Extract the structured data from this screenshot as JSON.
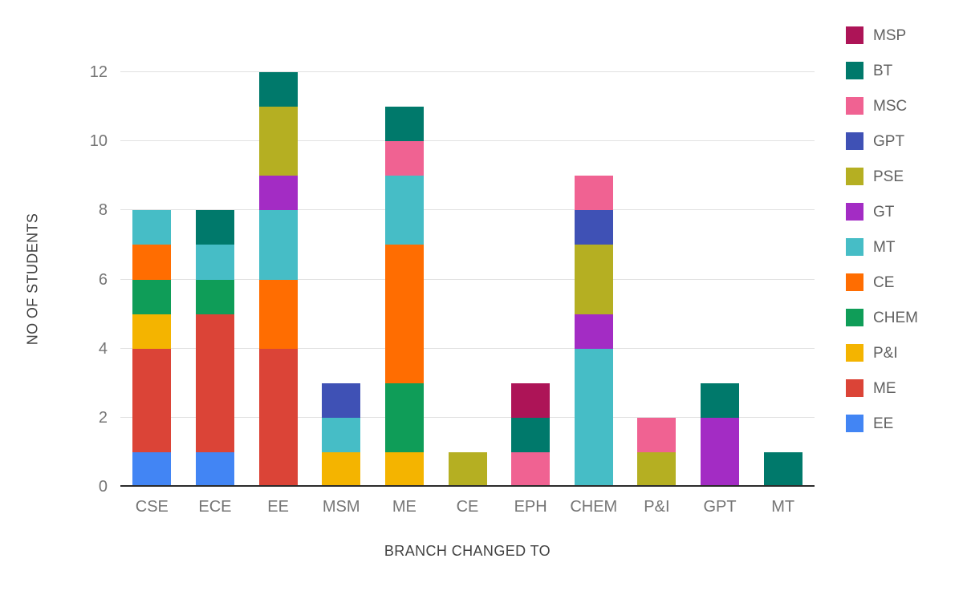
{
  "chart_data": {
    "type": "bar",
    "stacked": true,
    "xlabel": "BRANCH CHANGED TO",
    "ylabel": "NO OF STUDENTS",
    "categories": [
      "CSE",
      "ECE",
      "EE",
      "MSM",
      "ME",
      "CE",
      "EPH",
      "CHEM",
      "P&I",
      "GPT",
      "MT"
    ],
    "ylim": [
      0,
      12
    ],
    "yticks": [
      0,
      2,
      4,
      6,
      8,
      10,
      12
    ],
    "grid": true,
    "legend_position": "right",
    "legend_top_to_bottom": [
      "MSP",
      "BT",
      "MSC",
      "GPT",
      "PSE",
      "GT",
      "MT",
      "CE",
      "CHEM",
      "P&I",
      "ME",
      "EE"
    ],
    "series": [
      {
        "name": "EE",
        "color": "#4285F4",
        "values": [
          1,
          1,
          0,
          0,
          0,
          0,
          0,
          0,
          0,
          0,
          0
        ]
      },
      {
        "name": "ME",
        "color": "#DB4437",
        "values": [
          3,
          4,
          4,
          0,
          0,
          0,
          0,
          0,
          0,
          0,
          0
        ]
      },
      {
        "name": "P&I",
        "color": "#F4B400",
        "values": [
          1,
          0,
          0,
          1,
          1,
          0,
          0,
          0,
          0,
          0,
          0
        ]
      },
      {
        "name": "CHEM",
        "color": "#0F9D58",
        "values": [
          1,
          1,
          0,
          0,
          2,
          0,
          0,
          0,
          0,
          0,
          0
        ]
      },
      {
        "name": "CE",
        "color": "#FF6D01",
        "values": [
          1,
          0,
          2,
          0,
          4,
          0,
          0,
          0,
          0,
          0,
          0
        ]
      },
      {
        "name": "MT",
        "color": "#46BDC6",
        "values": [
          1,
          1,
          2,
          1,
          2,
          0,
          0,
          4,
          0,
          0,
          0
        ]
      },
      {
        "name": "GT",
        "color": "#A32CC4",
        "values": [
          0,
          0,
          1,
          0,
          0,
          0,
          0,
          1,
          0,
          2,
          0
        ]
      },
      {
        "name": "PSE",
        "color": "#B5AF22",
        "values": [
          0,
          0,
          2,
          0,
          0,
          1,
          0,
          2,
          1,
          0,
          0
        ]
      },
      {
        "name": "GPT",
        "color": "#3F51B5",
        "values": [
          0,
          0,
          0,
          1,
          0,
          0,
          0,
          1,
          0,
          0,
          0
        ]
      },
      {
        "name": "MSC",
        "color": "#F06292",
        "values": [
          0,
          0,
          0,
          0,
          1,
          0,
          1,
          1,
          1,
          0,
          0
        ]
      },
      {
        "name": "BT",
        "color": "#00796B",
        "values": [
          0,
          1,
          1,
          0,
          1,
          0,
          1,
          0,
          0,
          1,
          1
        ]
      },
      {
        "name": "MSP",
        "color": "#AD1457",
        "values": [
          0,
          0,
          0,
          0,
          0,
          0,
          1,
          0,
          0,
          0,
          0
        ]
      }
    ],
    "axis_colors": {
      "tick_label": "#757575",
      "axis_title": "#424242",
      "gridline": "#e1e1e1",
      "baseline": "#2b2b2b"
    },
    "background": "#ffffff"
  }
}
